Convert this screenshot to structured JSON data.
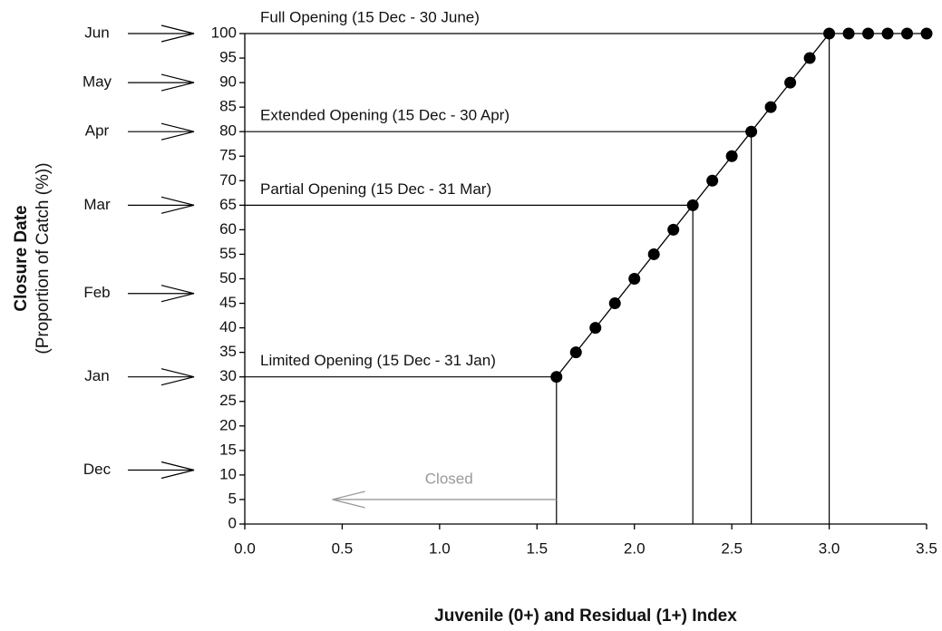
{
  "chart_data": {
    "type": "line",
    "xlabel": "Juvenile (0+) and Residual (1+) Index",
    "ylabel": "Closure Date",
    "ylabel_sub": "(Proportion of Catch (%))",
    "xlim": [
      0,
      3.5
    ],
    "ylim": [
      0,
      100
    ],
    "xticks": [
      {
        "value": 0,
        "label": "0.0"
      },
      0.5,
      {
        "value": 1,
        "label": "1.0"
      },
      1.5,
      {
        "value": 2,
        "label": "2.0"
      },
      2.5,
      {
        "value": 3,
        "label": "3.0"
      },
      3.5
    ],
    "yticks": [
      0,
      5,
      10,
      15,
      20,
      25,
      30,
      35,
      40,
      45,
      50,
      55,
      60,
      65,
      70,
      75,
      80,
      85,
      90,
      95,
      100
    ],
    "series": [
      {
        "color": "#000000",
        "x": [
          1.6,
          1.7,
          1.8,
          1.9,
          2.0,
          2.1,
          2.2,
          2.3,
          2.4,
          2.5,
          2.6,
          2.7,
          2.8,
          2.9,
          3.0,
          3.1,
          3.2,
          3.3,
          3.4,
          3.5
        ],
        "values": [
          30,
          35,
          40,
          45,
          50,
          55,
          60,
          65,
          70,
          75,
          80,
          85,
          90,
          95,
          100,
          100,
          100,
          100,
          100,
          100
        ]
      }
    ],
    "reference_lines": [
      {
        "label": "Full Opening (15 Dec - 30 June)",
        "x": 3.0,
        "y": 100
      },
      {
        "label": "Extended Opening (15 Dec - 30 Apr)",
        "x": 2.6,
        "y": 80
      },
      {
        "label": "Partial Opening (15 Dec - 31 Mar)",
        "x": 2.3,
        "y": 65
      },
      {
        "label": "Limited Opening (15 Dec - 31 Jan)",
        "x": 1.6,
        "y": 30
      }
    ],
    "closed_arrow": {
      "label": "Closed",
      "x_from": 1.6,
      "x_to": 0.45,
      "y": 5
    },
    "months": [
      {
        "label": "Jun",
        "y": 100
      },
      {
        "label": "May",
        "y": 90
      },
      {
        "label": "Apr",
        "y": 80
      },
      {
        "label": "Mar",
        "y": 65
      },
      {
        "label": "Feb",
        "y": 47
      },
      {
        "label": "Jan",
        "y": 30
      },
      {
        "label": "Dec",
        "y": 11
      }
    ]
  }
}
